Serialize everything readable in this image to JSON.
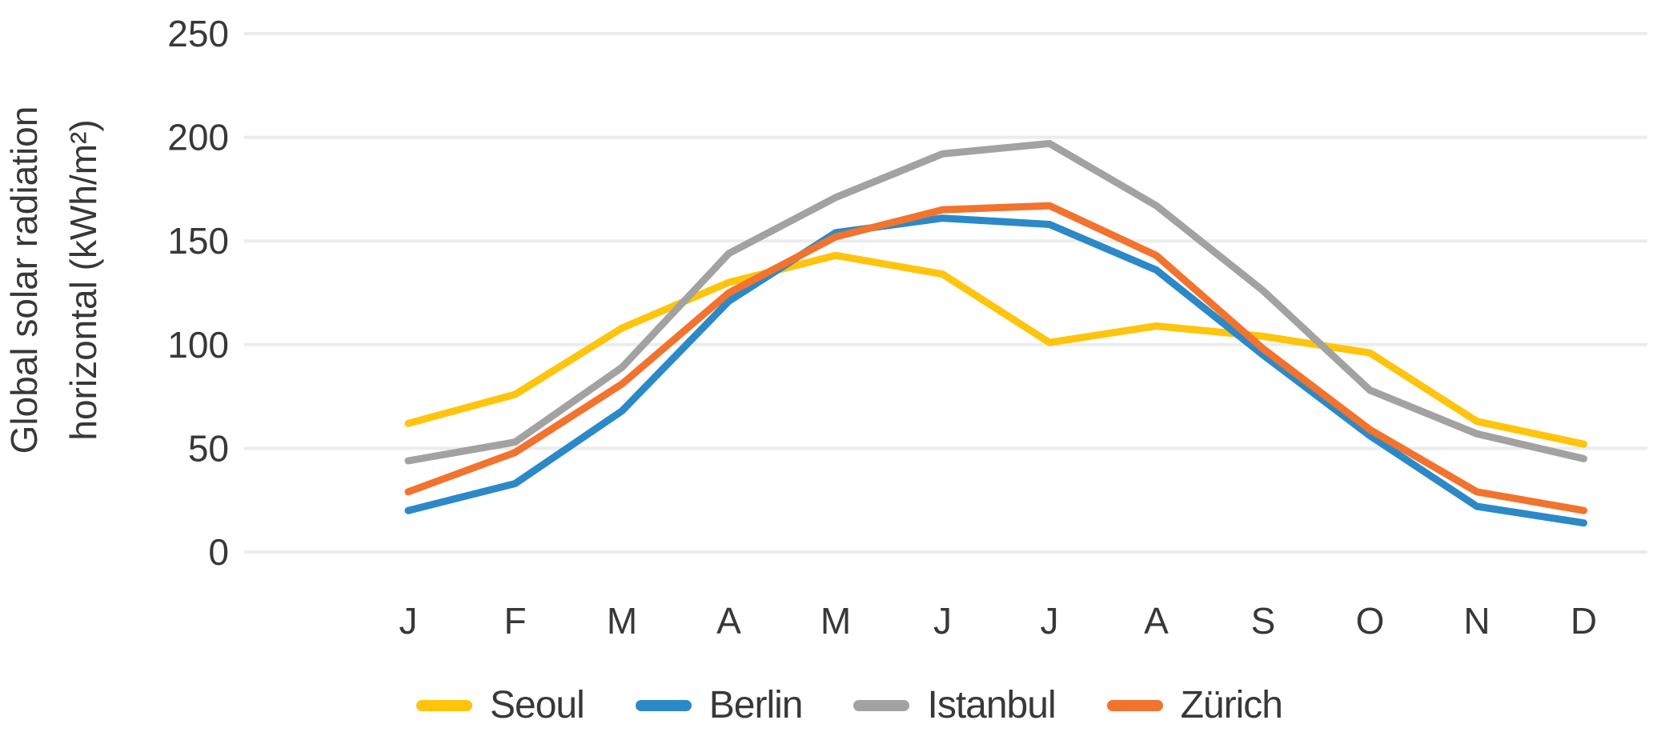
{
  "figure": {
    "background_color": "#ffffff",
    "text_color": "#383838",
    "gridline_color": "#ececec"
  },
  "y_axis": {
    "title_line1": "Global solar radiation",
    "title_line2": "horizontal (kWh/m²)",
    "tick_labels": [
      "250",
      "200",
      "150",
      "100",
      "50",
      "0"
    ]
  },
  "x_axis": {
    "labels": [
      "J",
      "F",
      "M",
      "A",
      "M",
      "J",
      "J",
      "A",
      "S",
      "O",
      "N",
      "D"
    ]
  },
  "legend": [
    {
      "label": "Seoul",
      "color": "#FFC40C"
    },
    {
      "label": "Berlin",
      "color": "#2B89C8"
    },
    {
      "label": "Istanbul",
      "color": "#A2A2A2"
    },
    {
      "label": "Zürich",
      "color": "#F2732E"
    }
  ],
  "chart_data": {
    "type": "line",
    "title": "",
    "xlabel": "",
    "ylabel": "Global solar radiation horizontal (kWh/m²)",
    "categories": [
      "J",
      "F",
      "M",
      "A",
      "M",
      "J",
      "J",
      "A",
      "S",
      "O",
      "N",
      "D"
    ],
    "y_ticks": [
      0,
      50,
      100,
      150,
      200,
      250
    ],
    "ylim": [
      0,
      250
    ],
    "grid": true,
    "legend_position": "bottom",
    "series": [
      {
        "name": "Seoul",
        "color": "#FFC40C",
        "values": [
          62,
          76,
          108,
          130,
          143,
          134,
          101,
          109,
          104,
          96,
          63,
          52
        ]
      },
      {
        "name": "Berlin",
        "color": "#2B89C8",
        "values": [
          20,
          33,
          68,
          121,
          154,
          161,
          158,
          136,
          95,
          56,
          22,
          14
        ]
      },
      {
        "name": "Istanbul",
        "color": "#A2A2A2",
        "values": [
          44,
          53,
          89,
          144,
          171,
          192,
          197,
          167,
          126,
          78,
          57,
          45
        ]
      },
      {
        "name": "Zürich",
        "color": "#F2732E",
        "values": [
          29,
          48,
          81,
          125,
          152,
          165,
          167,
          143,
          98,
          59,
          29,
          20
        ]
      }
    ]
  }
}
